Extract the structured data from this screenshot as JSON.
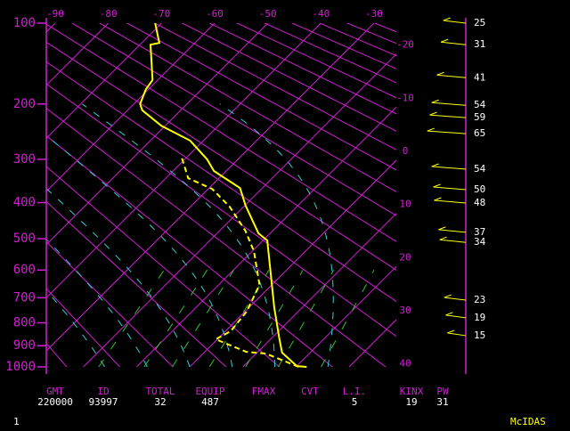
{
  "chart_data": {
    "type": "skew-t",
    "ylim": [
      1000,
      100
    ],
    "yticks": [
      100,
      200,
      300,
      400,
      500,
      600,
      700,
      800,
      900,
      1000
    ],
    "xlim": [
      -90,
      -30
    ],
    "xticks": [
      -90,
      -80,
      -70,
      -60,
      -50,
      -40,
      -30
    ],
    "isotherm_labels": [
      -20,
      -10,
      0,
      10,
      20,
      30,
      40
    ],
    "series": [
      {
        "color": "#ffff00",
        "style": "solid",
        "pressure": [
          1000,
          996,
          932,
          867,
          737,
          505,
          484,
          408,
          364,
          325,
          300,
          263,
          236,
          210,
          200,
          178,
          165,
          122,
          120,
          100
        ],
        "values": [
          22,
          20,
          14.7,
          11.5,
          4.7,
          -9.2,
          -12.2,
          -19.8,
          -24.2,
          -32.3,
          -35.8,
          -42.5,
          -50.7,
          -57.2,
          -58.8,
          -60.5,
          -61,
          -68,
          -66.7,
          -71.2
        ]
      },
      {
        "color": "#ffff00",
        "style": "dashed",
        "pressure": [
          1000,
          936,
          928,
          871,
          836,
          754,
          652,
          538,
          476,
          410,
          366,
          341,
          293
        ],
        "values": [
          20.5,
          11.8,
          7.8,
          -0.3,
          1,
          0.3,
          -2.3,
          -9.7,
          -15.2,
          -22.7,
          -29.3,
          -35.8,
          -41.3
        ]
      }
    ],
    "wind": {
      "color": "#ffff00",
      "pressure": [
        100,
        122,
        162,
        202,
        222,
        250,
        321,
        368,
        401,
        481,
        511,
        709,
        779,
        855
      ],
      "speeds": [
        25,
        31,
        41,
        54,
        59,
        65,
        54,
        50,
        48,
        37,
        34,
        23,
        19,
        15
      ]
    },
    "stats": [
      {
        "label": "GMT",
        "value": 220000
      },
      {
        "label": "ID",
        "value": 93997
      },
      {
        "label": "TOTAL",
        "value": 32
      },
      {
        "label": "EQUIP",
        "value": 487
      },
      {
        "label": "FMAX"
      },
      {
        "label": "CVT"
      },
      {
        "label": "L.I.",
        "value": 5
      },
      {
        "label": "KINX",
        "value": 19
      },
      {
        "label": "PW",
        "value": 31
      }
    ],
    "footer": {
      "left": "1",
      "right": "McIDAS"
    }
  }
}
